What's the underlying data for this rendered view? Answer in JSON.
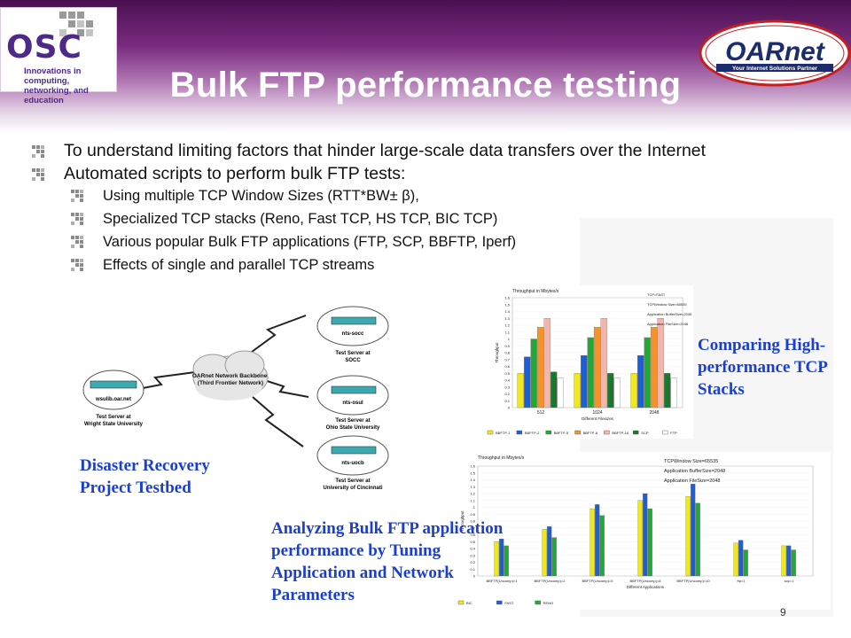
{
  "slide": {
    "title": "Bulk FTP performance testing",
    "page_number": "9"
  },
  "logos": {
    "osc_text": "OSC",
    "osc_tagline": "Innovations in computing, networking, and education",
    "oarnet_text": "OARnet",
    "oarnet_tagline": "Your Internet Solutions Partner"
  },
  "bullets": {
    "level1": [
      "To understand limiting factors that hinder large-scale data transfers over the Internet",
      "Automated scripts to perform bulk FTP tests:"
    ],
    "level2": [
      "Using multiple TCP Window Sizes (RTT*BW± β),",
      "Specialized TCP stacks (Reno, Fast TCP, HS TCP, BIC TCP)",
      "Various popular Bulk FTP applications (FTP, SCP, BBFTP, Iperf)",
      "Effects of single and parallel TCP streams"
    ]
  },
  "diagram": {
    "cloud_label": "OARnet Network Backbone (Third Frontier Network)",
    "nodes": [
      {
        "device": "wsulib.oar.net",
        "label1": "Test Server at",
        "label2": "Wright State University"
      },
      {
        "device": "nts-socc",
        "label1": "Test Server at",
        "label2": "SOCC"
      },
      {
        "device": "nts-osul",
        "label1": "Test Server at",
        "label2": "Ohio State University"
      },
      {
        "device": "nts-uocb",
        "label1": "Test Server at",
        "label2": "University of Cincinnati"
      }
    ]
  },
  "captions": {
    "disaster_recovery": [
      "Disaster Recovery",
      "Project Testbed"
    ],
    "comparing": [
      "Comparing High-",
      "performance TCP",
      "Stacks"
    ],
    "analyzing": [
      "Analyzing Bulk FTP application",
      "performance by Tuning",
      "Application and Network",
      "Parameters"
    ]
  },
  "chart_data": [
    {
      "type": "bar",
      "title": "Throughput in Mbytes/s",
      "ylabel": "Throughput",
      "xlabel": "Different Filesizes",
      "ylim": [
        0,
        1.6
      ],
      "yticks": [
        "0",
        "0.1",
        "0.2",
        "0.3",
        "0.4",
        "0.5",
        "0.6",
        "0.7",
        "0.8",
        "0.9",
        "1",
        "1.1",
        "1.2",
        "1.3",
        "1.4",
        "1.5",
        "1.6"
      ],
      "categories": [
        "512",
        "1024",
        "2048"
      ],
      "info": [
        "TCP=FAST",
        "TCPWindow Size=65535",
        "Application BufferSize=2048",
        "Application FileSize=2048"
      ],
      "series": [
        {
          "name": "BBFTP-1",
          "color": "#f0e81e",
          "values": [
            0.5,
            0.5,
            0.5
          ]
        },
        {
          "name": "BBFTP-2",
          "color": "#1f5fd6",
          "values": [
            0.74,
            0.76,
            0.76
          ]
        },
        {
          "name": "BBFTP-5",
          "color": "#22a83a",
          "values": [
            1.0,
            1.02,
            1.02
          ]
        },
        {
          "name": "BBFTP-8",
          "color": "#f3932b",
          "values": [
            1.17,
            1.17,
            1.17
          ]
        },
        {
          "name": "BBFTP-16",
          "color": "#f3b6ad",
          "values": [
            1.3,
            1.3,
            1.3
          ]
        },
        {
          "name": "SCP",
          "color": "#177a2a",
          "values": [
            0.52,
            0.5,
            0.5
          ]
        },
        {
          "name": "FTP",
          "color": "#ffffff",
          "values": [
            0.43,
            0.43,
            0.43
          ]
        }
      ]
    },
    {
      "type": "bar",
      "title": "Throughput in Mbytes/s",
      "ylabel": "Throughput",
      "xlabel": "Different Applications",
      "ylim": [
        0,
        1.6
      ],
      "yticks": [
        "0",
        "0.1",
        "0.2",
        "0.3",
        "0.4",
        "0.5",
        "0.6",
        "0.7",
        "0.8",
        "0.9",
        "1",
        "1.1",
        "1.2",
        "1.3",
        "1.4",
        "1.5",
        "1.6"
      ],
      "categories": [
        "BBFTP(Uncomp)=1",
        "BBFTP(Uncomp)=2",
        "BBFTP(Uncomp)=5",
        "BBFTP(Uncomp)=8",
        "BBFTP(Uncomp)=10",
        "ftp=1",
        "scp=1"
      ],
      "info": [
        "TCPWindow Size=65535",
        "Application BufferSize=2048",
        "Application FileSize=2048"
      ],
      "series": [
        {
          "name": "BIC",
          "color": "#f0e81e",
          "values": [
            0.5,
            0.68,
            0.98,
            1.1,
            1.16,
            0.48,
            0.44
          ]
        },
        {
          "name": "FAST",
          "color": "#1f5fd6",
          "values": [
            0.54,
            0.72,
            1.04,
            1.2,
            1.34,
            0.52,
            0.44
          ]
        },
        {
          "name": "RENO",
          "color": "#22a83a",
          "values": [
            0.44,
            0.56,
            0.88,
            0.98,
            1.06,
            0.38,
            0.38
          ]
        }
      ]
    }
  ]
}
